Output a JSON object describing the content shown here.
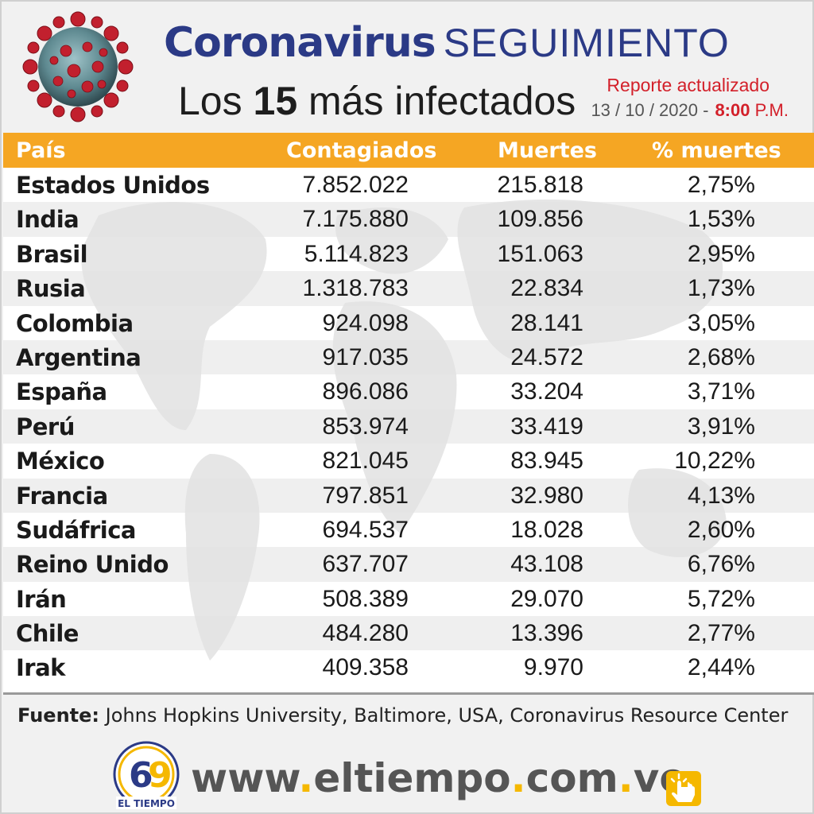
{
  "header": {
    "title_bold": "Coronavirus",
    "title_light": "SEGUIMIENTO",
    "subtitle_prefix": "Los ",
    "subtitle_number": "15",
    "subtitle_suffix": " más infectados",
    "report_label": "Reporte actualizado",
    "report_date": "13 / 10 / 2020 -",
    "report_time": "8:00",
    "report_ampm": "P.M."
  },
  "table": {
    "headers": [
      "País",
      "Contagiados",
      "Muertes",
      "% muertes"
    ],
    "rows": [
      {
        "country": "Estados Unidos",
        "cases": "7.852.022",
        "deaths": "215.818",
        "pct": "2,75%"
      },
      {
        "country": "India",
        "cases": "7.175.880",
        "deaths": "109.856",
        "pct": "1,53%"
      },
      {
        "country": "Brasil",
        "cases": "5.114.823",
        "deaths": "151.063",
        "pct": "2,95%"
      },
      {
        "country": "Rusia",
        "cases": "1.318.783",
        "deaths": "22.834",
        "pct": "1,73%"
      },
      {
        "country": "Colombia",
        "cases": "924.098",
        "deaths": "28.141",
        "pct": "3,05%"
      },
      {
        "country": "Argentina",
        "cases": "917.035",
        "deaths": "24.572",
        "pct": "2,68%"
      },
      {
        "country": "España",
        "cases": "896.086",
        "deaths": "33.204",
        "pct": "3,71%"
      },
      {
        "country": "Perú",
        "cases": "853.974",
        "deaths": "33.419",
        "pct": "3,91%"
      },
      {
        "country": "México",
        "cases": "821.045",
        "deaths": "83.945",
        "pct": "10,22%"
      },
      {
        "country": "Francia",
        "cases": "797.851",
        "deaths": "32.980",
        "pct": "4,13%"
      },
      {
        "country": "Sudáfrica",
        "cases": "694.537",
        "deaths": "18.028",
        "pct": "2,60%"
      },
      {
        "country": "Reino Unido",
        "cases": "637.707",
        "deaths": "43.108",
        "pct": "6,76%"
      },
      {
        "country": "Irán",
        "cases": "508.389",
        "deaths": "29.070",
        "pct": "5,72%"
      },
      {
        "country": "Chile",
        "cases": "484.280",
        "deaths": "13.396",
        "pct": "2,77%"
      },
      {
        "country": "Irak",
        "cases": "409.358",
        "deaths": "9.970",
        "pct": "2,44%"
      }
    ]
  },
  "footer": {
    "source_label": "Fuente:",
    "source_text": " Johns Hopkins University, Baltimore, USA, Coronavirus Resource Center",
    "logo_name": "EL TIEMPO",
    "url_parts": [
      "www",
      ".",
      "eltiempo",
      ".",
      "com",
      ".",
      "ve"
    ]
  },
  "colors": {
    "header_bar": "#f5a623",
    "title_blue": "#2b3a86",
    "accent_red": "#d3202a",
    "url_dot_yellow": "#f5b800"
  },
  "icons": [
    "virus-icon",
    "eltiempo-logo",
    "hand-click-icon"
  ]
}
